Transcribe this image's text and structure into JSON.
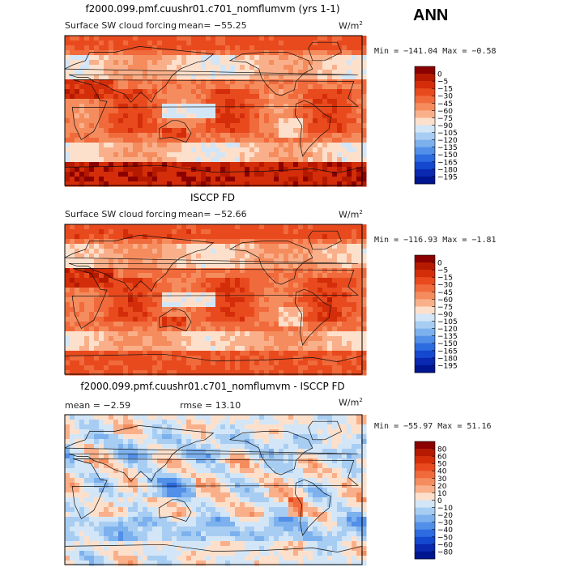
{
  "season": "ANN",
  "panels": [
    {
      "title": "f2000.099.pmf.cuushr01.c701_nomflumvm (yrs 1-1)",
      "variable": "Surface SW cloud forcing",
      "mean_text": "mean=  −55.25",
      "rmse_text": "",
      "units": "W/m",
      "units_exp": "2",
      "min_max": "Min = −141.04  Max =   −0.58"
    },
    {
      "title": "ISCCP FD",
      "variable": "Surface SW cloud forcing",
      "mean_text": "mean=  −52.66",
      "rmse_text": "",
      "units": "W/m",
      "units_exp": "2",
      "min_max": "Min = −116.93  Max =   −1.81"
    },
    {
      "title": "f2000.099.pmf.cuushr01.c701_nomflumvm - ISCCP FD",
      "variable": "",
      "mean_text": "mean =    −2.59",
      "rmse_text": "rmse =   13.10",
      "units": "W/m",
      "units_exp": "2",
      "min_max": "Min = −55.97  Max =  51.16"
    }
  ],
  "chart_data": [
    {
      "type": "heatmap",
      "title": "f2000.099.pmf.cuushr01.c701_nomflumvm (yrs 1-1)",
      "subtitle": "Surface SW cloud forcing",
      "units": "W/m2",
      "mean": -55.25,
      "min": -141.04,
      "max": -0.58,
      "colorbar_levels": [
        0,
        -5,
        -15,
        -30,
        -45,
        -60,
        -75,
        -90,
        -105,
        -120,
        -135,
        -150,
        -165,
        -180,
        -195
      ],
      "colorbar_labels": [
        "0",
        "−5",
        "−15",
        "−30",
        "−45",
        "−60",
        "−75",
        "−90",
        "−105",
        "−120",
        "−135",
        "−150",
        "−165",
        "−180",
        "−195"
      ],
      "colorbar_colors": [
        "#8b0000",
        "#b51a00",
        "#d42d0a",
        "#e84a1e",
        "#f06a3c",
        "#f58c5e",
        "#f9b08a",
        "#fde0cc",
        "#d3e6f7",
        "#a8cdf2",
        "#7cb1ee",
        "#528fe8",
        "#2d6be0",
        "#1448cf",
        "#0a28b0",
        "#001590"
      ]
    },
    {
      "type": "heatmap",
      "title": "ISCCP FD",
      "subtitle": "Surface SW cloud forcing",
      "units": "W/m2",
      "mean": -52.66,
      "min": -116.93,
      "max": -1.81,
      "colorbar_levels": [
        0,
        -5,
        -15,
        -30,
        -45,
        -60,
        -75,
        -90,
        -105,
        -120,
        -135,
        -150,
        -165,
        -180,
        -195
      ],
      "colorbar_labels": [
        "0",
        "−5",
        "−15",
        "−30",
        "−45",
        "−60",
        "−75",
        "−90",
        "−105",
        "−120",
        "−135",
        "−150",
        "−165",
        "−180",
        "−195"
      ],
      "colorbar_colors": [
        "#8b0000",
        "#b51a00",
        "#d42d0a",
        "#e84a1e",
        "#f06a3c",
        "#f58c5e",
        "#f9b08a",
        "#fde0cc",
        "#d3e6f7",
        "#a8cdf2",
        "#7cb1ee",
        "#528fe8",
        "#2d6be0",
        "#1448cf",
        "#0a28b0",
        "#001590"
      ]
    },
    {
      "type": "heatmap",
      "title": "f2000.099.pmf.cuushr01.c701_nomflumvm - ISCCP FD",
      "units": "W/m2",
      "mean": -2.59,
      "rmse": 13.1,
      "min": -55.97,
      "max": 51.16,
      "colorbar_levels": [
        80,
        60,
        50,
        40,
        30,
        20,
        10,
        0,
        -10,
        -20,
        -30,
        -40,
        -50,
        -60,
        -80
      ],
      "colorbar_labels": [
        "80",
        "60",
        "50",
        "40",
        "30",
        "20",
        "10",
        "0",
        "−10",
        "−20",
        "−30",
        "−40",
        "−50",
        "−60",
        "−80"
      ],
      "colorbar_colors": [
        "#8b0000",
        "#b51a00",
        "#d42d0a",
        "#e84a1e",
        "#f06a3c",
        "#f58c5e",
        "#f9b08a",
        "#fde0cc",
        "#d3e6f7",
        "#a8cdf2",
        "#7cb1ee",
        "#528fe8",
        "#2d6be0",
        "#1448cf",
        "#0a28b0",
        "#001590"
      ]
    }
  ]
}
